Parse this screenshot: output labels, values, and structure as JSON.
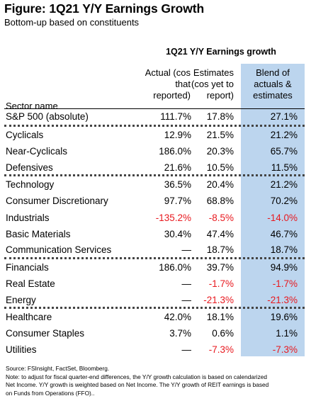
{
  "title": "Figure: 1Q21 Y/Y Earnings Growth",
  "subtitle": "Bottom-up based on constituents",
  "group_header": "1Q21 Y/Y Earnings growth",
  "columns": {
    "sector": [
      "Sector name"
    ],
    "actual": [
      "Actual (cos",
      "that",
      "reported)"
    ],
    "estimates": [
      "Estimates",
      "(cos yet to",
      "report)"
    ],
    "blend": [
      "Blend of",
      "actuals &",
      "estimates"
    ]
  },
  "colors": {
    "blend_highlight": "#bcd5ee",
    "negative": "#e8191f"
  },
  "rows": [
    {
      "sector": "S&P 500 (absolute)",
      "actual": "111.7%",
      "estimates": "17.8%",
      "blend": "27.1%"
    },
    {
      "sector": "Cyclicals",
      "actual": "12.9%",
      "estimates": "21.5%",
      "blend": "21.2%"
    },
    {
      "sector": "Near-Cyclicals",
      "actual": "186.0%",
      "estimates": "20.3%",
      "blend": "65.7%"
    },
    {
      "sector": "Defensives",
      "actual": "21.6%",
      "estimates": "10.5%",
      "blend": "11.5%"
    },
    {
      "sector": "Technology",
      "actual": "36.5%",
      "estimates": "20.4%",
      "blend": "21.2%"
    },
    {
      "sector": "Consumer Discretionary",
      "actual": "97.7%",
      "estimates": "68.8%",
      "blend": "70.2%"
    },
    {
      "sector": "Industrials",
      "actual": "-135.2%",
      "estimates": "-8.5%",
      "blend": "-14.0%"
    },
    {
      "sector": "Basic Materials",
      "actual": "30.4%",
      "estimates": "47.4%",
      "blend": "46.7%"
    },
    {
      "sector": "Communication Services",
      "actual": "—",
      "estimates": "18.7%",
      "blend": "18.7%"
    },
    {
      "sector": "Financials",
      "actual": "186.0%",
      "estimates": "39.7%",
      "blend": "94.9%"
    },
    {
      "sector": "Real Estate",
      "actual": "—",
      "estimates": "-1.7%",
      "blend": "-1.7%"
    },
    {
      "sector": "Energy",
      "actual": "—",
      "estimates": "-21.3%",
      "blend": "-21.3%"
    },
    {
      "sector": "Healthcare",
      "actual": "42.0%",
      "estimates": "18.1%",
      "blend": "19.6%"
    },
    {
      "sector": "Consumer Staples",
      "actual": "3.7%",
      "estimates": "0.6%",
      "blend": "1.1%"
    },
    {
      "sector": "Utilities",
      "actual": "—",
      "estimates": "-7.3%",
      "blend": "-7.3%"
    }
  ],
  "footnote": [
    "Source: FSInsight, FactSet, Bloomberg.",
    "Note: to adjust for fiscal quarter-end differences, the Y/Y growth calculation is based on calendarized",
    "Net Income. Y/Y growth is weighted based on Net Income. The Y/Y growth of REIT earnings is based",
    "on Funds from Operations (FFO).."
  ]
}
